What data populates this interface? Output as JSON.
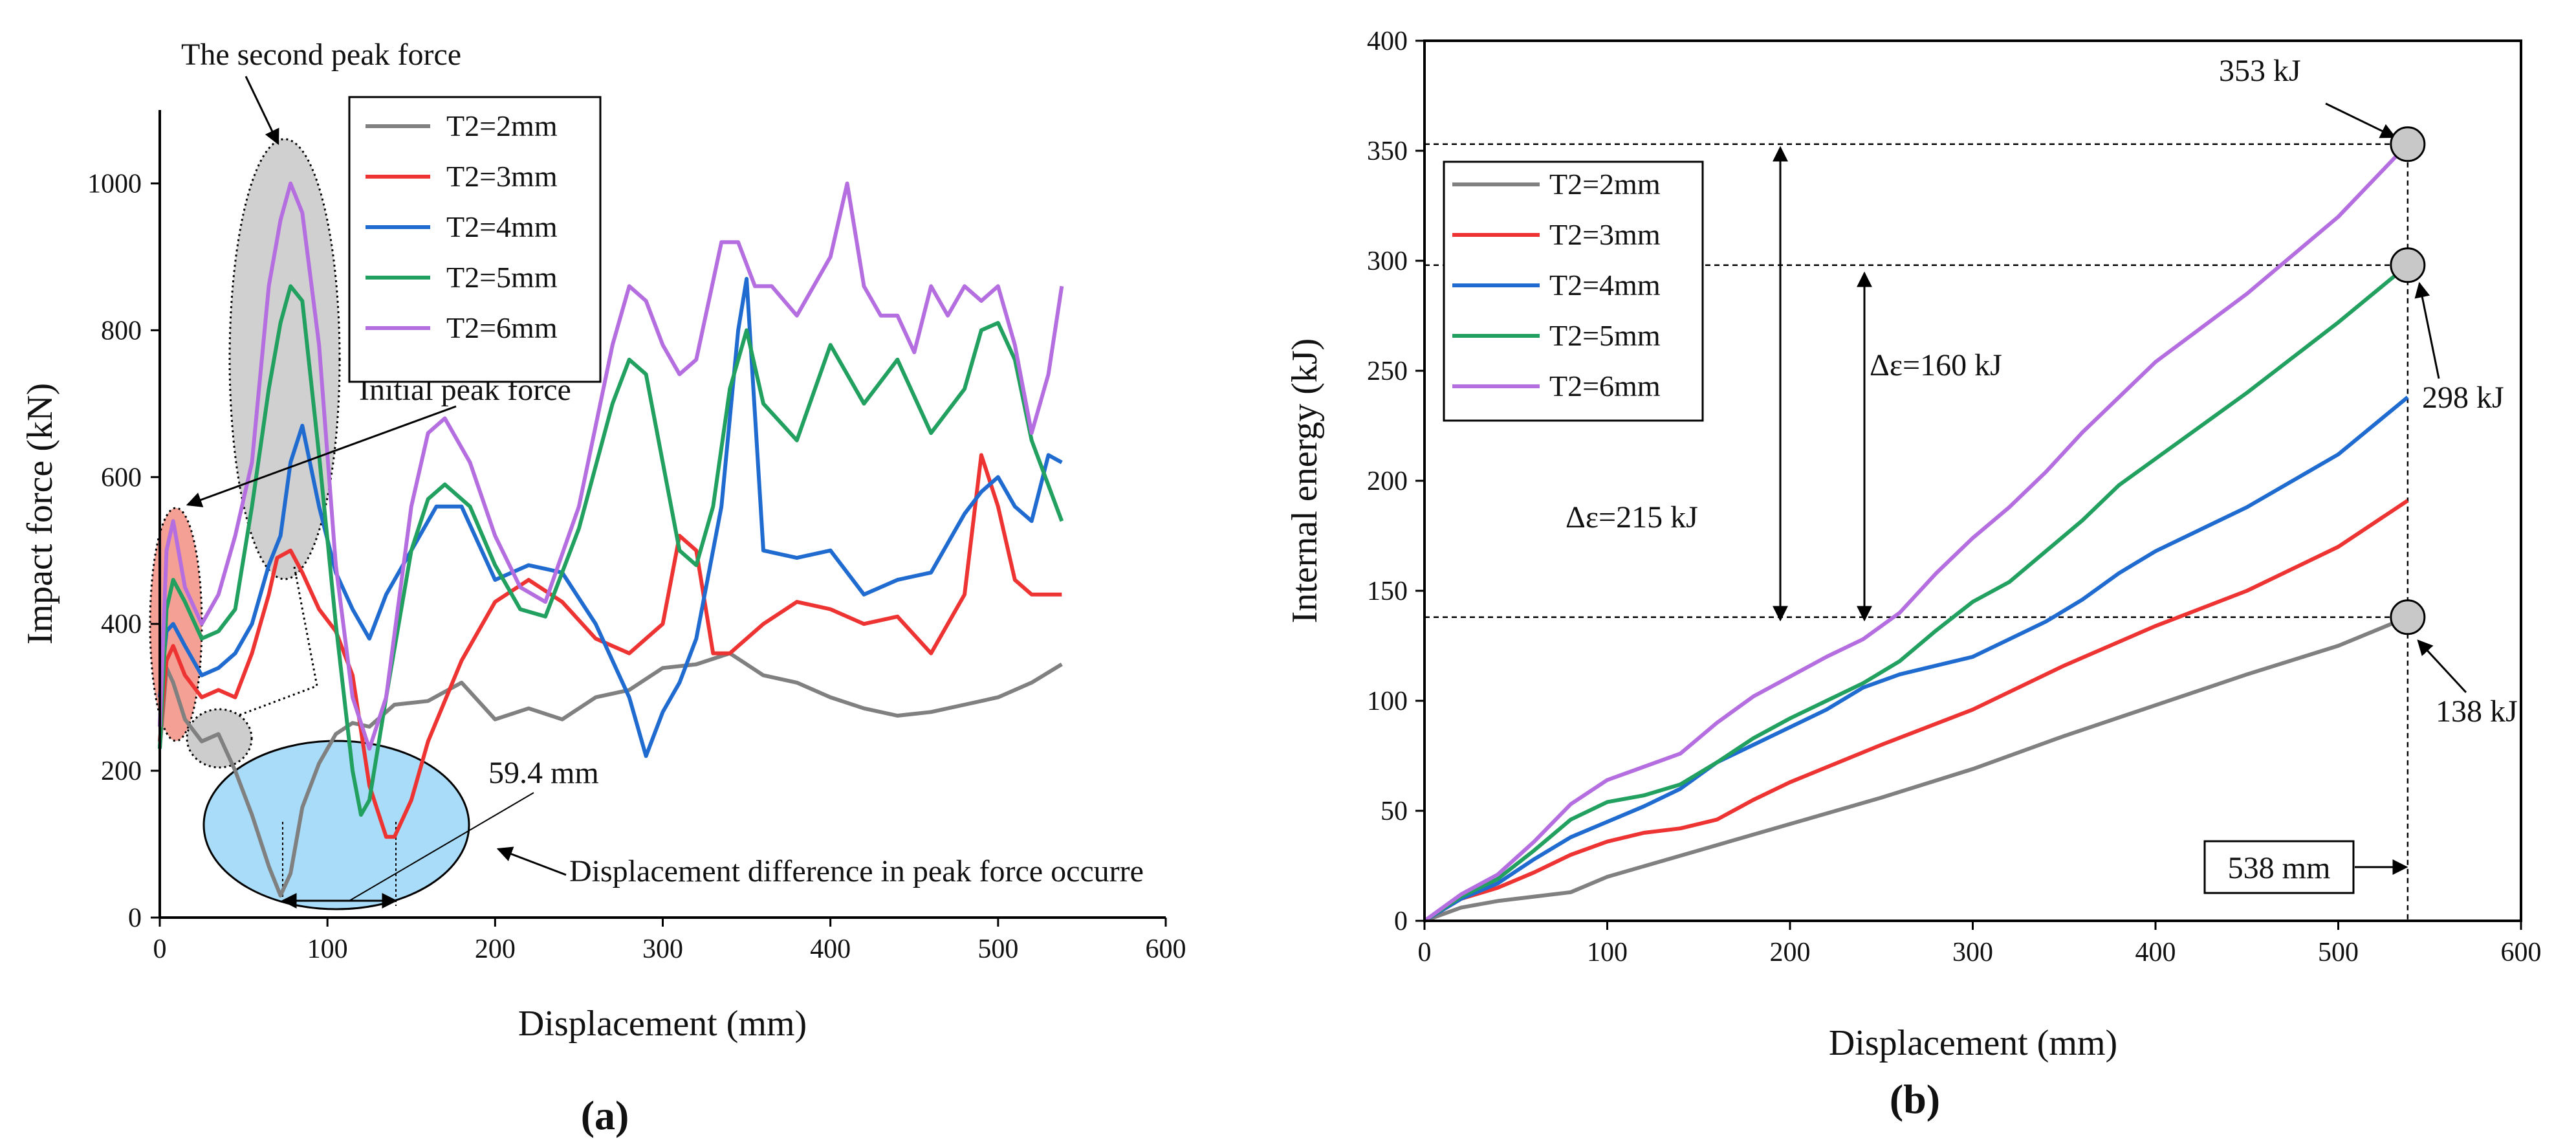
{
  "chart_data": [
    {
      "type": "line",
      "panel_label": "(a)",
      "xlabel": "Displacement (mm)",
      "ylabel": "Impact force (kN)",
      "xlim": [
        0,
        600
      ],
      "ylim": [
        0,
        1100
      ],
      "xticks": [
        0,
        100,
        200,
        300,
        400,
        500,
        600
      ],
      "yticks": [
        0,
        200,
        400,
        600,
        800,
        1000
      ],
      "legend_position": "top-right",
      "series": [
        {
          "name": "T2=2mm",
          "color": "#808080",
          "x": [
            0,
            4,
            8,
            15,
            25,
            35,
            45,
            55,
            65,
            72,
            78,
            85,
            95,
            105,
            115,
            125,
            140,
            160,
            180,
            200,
            220,
            240,
            260,
            280,
            300,
            320,
            340,
            360,
            380,
            400,
            420,
            440,
            460,
            480,
            500,
            520,
            538
          ],
          "y": [
            230,
            340,
            320,
            270,
            240,
            250,
            200,
            140,
            70,
            30,
            60,
            150,
            210,
            250,
            265,
            260,
            290,
            295,
            320,
            270,
            285,
            270,
            300,
            310,
            340,
            345,
            360,
            330,
            320,
            300,
            285,
            275,
            280,
            290,
            300,
            320,
            345
          ]
        },
        {
          "name": "T2=3mm",
          "color": "#ee3333",
          "x": [
            0,
            4,
            8,
            15,
            25,
            35,
            45,
            55,
            65,
            70,
            78,
            85,
            95,
            105,
            115,
            125,
            135,
            140,
            150,
            160,
            180,
            200,
            220,
            240,
            260,
            280,
            300,
            310,
            320,
            330,
            340,
            360,
            380,
            400,
            420,
            440,
            460,
            480,
            490,
            500,
            510,
            520,
            538
          ],
          "y": [
            240,
            350,
            370,
            330,
            300,
            310,
            300,
            360,
            440,
            490,
            500,
            470,
            420,
            390,
            330,
            180,
            110,
            110,
            160,
            240,
            350,
            430,
            460,
            430,
            380,
            360,
            400,
            520,
            500,
            360,
            360,
            400,
            430,
            420,
            400,
            410,
            360,
            440,
            630,
            560,
            460,
            440,
            440
          ]
        },
        {
          "name": "T2=4mm",
          "color": "#1f6bd0",
          "x": [
            0,
            4,
            8,
            15,
            25,
            35,
            45,
            55,
            65,
            72,
            78,
            85,
            95,
            105,
            115,
            125,
            135,
            150,
            165,
            180,
            200,
            220,
            240,
            260,
            280,
            290,
            300,
            310,
            320,
            335,
            345,
            350,
            360,
            380,
            400,
            420,
            440,
            460,
            480,
            490,
            500,
            510,
            520,
            530,
            538
          ],
          "y": [
            300,
            390,
            400,
            370,
            330,
            340,
            360,
            400,
            480,
            520,
            620,
            670,
            560,
            470,
            420,
            380,
            440,
            500,
            560,
            560,
            460,
            480,
            470,
            400,
            300,
            220,
            280,
            320,
            380,
            560,
            800,
            870,
            500,
            490,
            500,
            440,
            460,
            470,
            550,
            580,
            600,
            560,
            540,
            630,
            620
          ]
        },
        {
          "name": "T2=5mm",
          "color": "#22a060",
          "x": [
            0,
            4,
            8,
            15,
            25,
            35,
            45,
            55,
            65,
            72,
            78,
            85,
            95,
            105,
            115,
            120,
            125,
            135,
            150,
            160,
            170,
            185,
            200,
            215,
            230,
            250,
            270,
            280,
            290,
            300,
            310,
            320,
            330,
            340,
            350,
            360,
            380,
            400,
            420,
            440,
            460,
            480,
            490,
            500,
            510,
            520,
            538
          ],
          "y": [
            230,
            420,
            460,
            430,
            380,
            390,
            420,
            560,
            720,
            810,
            860,
            840,
            630,
            400,
            200,
            140,
            160,
            300,
            500,
            570,
            590,
            560,
            480,
            420,
            410,
            530,
            700,
            760,
            740,
            620,
            500,
            480,
            560,
            720,
            800,
            700,
            650,
            780,
            700,
            760,
            660,
            720,
            800,
            810,
            760,
            650,
            540
          ]
        },
        {
          "name": "T2=6mm",
          "color": "#b46ee0",
          "x": [
            0,
            4,
            8,
            15,
            25,
            30,
            35,
            45,
            55,
            65,
            72,
            78,
            85,
            95,
            105,
            115,
            125,
            135,
            150,
            160,
            170,
            185,
            200,
            215,
            230,
            250,
            270,
            280,
            290,
            300,
            310,
            320,
            335,
            345,
            355,
            365,
            380,
            400,
            410,
            420,
            430,
            440,
            450,
            460,
            470,
            480,
            490,
            500,
            510,
            520,
            530,
            538
          ],
          "y": [
            260,
            500,
            540,
            450,
            400,
            420,
            440,
            520,
            620,
            860,
            950,
            1000,
            960,
            780,
            480,
            300,
            230,
            300,
            560,
            660,
            680,
            620,
            520,
            450,
            430,
            560,
            780,
            860,
            840,
            780,
            740,
            760,
            920,
            920,
            860,
            860,
            820,
            900,
            1000,
            860,
            820,
            820,
            770,
            860,
            820,
            860,
            840,
            860,
            780,
            660,
            740,
            860
          ]
        }
      ],
      "annotations": {
        "second_peak": "The second peak force",
        "initial_peak": "Initial peak force",
        "displacement_diff": "Displacement difference in peak force occurre",
        "distance": "59.4 mm"
      }
    },
    {
      "type": "line",
      "panel_label": "(b)",
      "xlabel": "Displacement (mm)",
      "ylabel": "Internal energy (kJ)",
      "xlim": [
        0,
        600
      ],
      "ylim": [
        0,
        400
      ],
      "xticks": [
        0,
        100,
        200,
        300,
        400,
        500,
        600
      ],
      "yticks": [
        0,
        50,
        100,
        150,
        200,
        250,
        300,
        350,
        400
      ],
      "legend_position": "top-left",
      "series": [
        {
          "name": "T2=2mm",
          "color": "#808080",
          "x": [
            0,
            20,
            40,
            60,
            80,
            100,
            150,
            200,
            250,
            300,
            350,
            400,
            450,
            500,
            538
          ],
          "y": [
            0,
            6,
            9,
            11,
            13,
            20,
            32,
            44,
            56,
            69,
            84,
            98,
            112,
            125,
            138
          ]
        },
        {
          "name": "T2=3mm",
          "color": "#ee3333",
          "x": [
            0,
            20,
            40,
            60,
            80,
            100,
            120,
            140,
            160,
            180,
            200,
            250,
            300,
            350,
            400,
            450,
            500,
            538
          ],
          "y": [
            0,
            10,
            15,
            22,
            30,
            36,
            40,
            42,
            46,
            55,
            63,
            80,
            96,
            116,
            134,
            150,
            170,
            191
          ]
        },
        {
          "name": "T2=4mm",
          "color": "#1f6bd0",
          "x": [
            0,
            20,
            40,
            60,
            80,
            100,
            120,
            140,
            160,
            180,
            200,
            220,
            240,
            260,
            280,
            300,
            320,
            340,
            360,
            380,
            400,
            450,
            500,
            538
          ],
          "y": [
            0,
            10,
            17,
            28,
            38,
            45,
            52,
            60,
            72,
            80,
            88,
            96,
            106,
            112,
            116,
            120,
            128,
            136,
            146,
            158,
            168,
            188,
            212,
            238
          ]
        },
        {
          "name": "T2=5mm",
          "color": "#22a060",
          "x": [
            0,
            20,
            40,
            60,
            80,
            100,
            120,
            140,
            160,
            180,
            200,
            220,
            240,
            260,
            280,
            300,
            320,
            340,
            360,
            380,
            400,
            450,
            500,
            538
          ],
          "y": [
            0,
            11,
            19,
            32,
            46,
            54,
            57,
            62,
            72,
            83,
            92,
            100,
            108,
            118,
            132,
            145,
            154,
            168,
            182,
            198,
            210,
            240,
            272,
            298
          ]
        },
        {
          "name": "T2=6mm",
          "color": "#b46ee0",
          "x": [
            0,
            20,
            40,
            60,
            80,
            100,
            120,
            140,
            160,
            180,
            200,
            220,
            240,
            260,
            280,
            300,
            320,
            340,
            360,
            380,
            400,
            450,
            500,
            538
          ],
          "y": [
            0,
            12,
            21,
            36,
            53,
            64,
            70,
            76,
            90,
            102,
            111,
            120,
            128,
            140,
            158,
            174,
            188,
            204,
            222,
            238,
            254,
            285,
            320,
            353
          ]
        }
      ],
      "reference_lines": [
        353,
        298,
        138
      ],
      "endpoint_x": 538,
      "annotations": {
        "e353": "353 kJ",
        "e298": "298 kJ",
        "e138": "138 kJ",
        "d160": "Δε=160 kJ",
        "d215": "Δε=215 kJ",
        "x538": "538 mm"
      }
    }
  ]
}
